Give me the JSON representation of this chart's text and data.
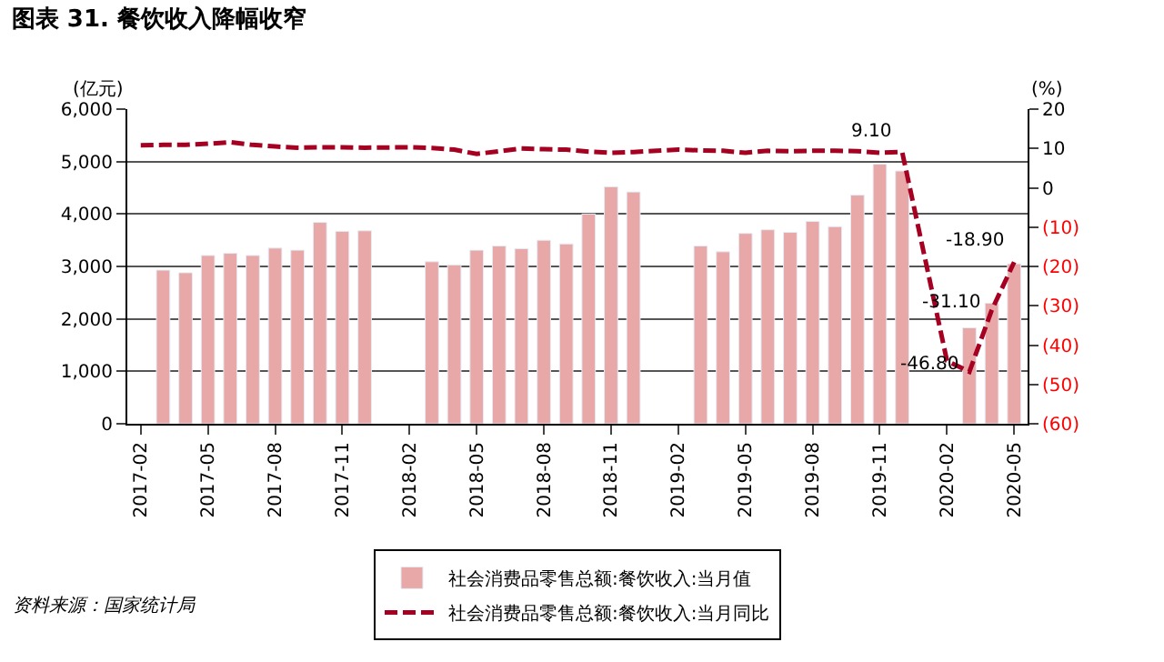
{
  "chart_data": {
    "type": "bar",
    "title": "图表 31. 餐饮收入降幅收窄",
    "ylabel": "(亿元)",
    "y2label": "(%)",
    "categories": [
      "2017-02",
      null,
      null,
      "2017-05",
      null,
      null,
      "2017-08",
      null,
      null,
      "2017-11",
      null,
      null,
      "2018-02",
      null,
      null,
      "2018-05",
      null,
      null,
      "2018-08",
      null,
      null,
      "2018-11",
      null,
      null,
      "2019-02",
      null,
      null,
      "2019-05",
      null,
      null,
      "2019-08",
      null,
      null,
      "2019-11",
      null,
      null,
      "2020-02",
      null,
      null,
      "2020-05"
    ],
    "series": [
      {
        "name": "社会消费品零售总额:餐饮收入:当月值",
        "color": "#e8a8a8",
        "values": [
          null,
          2930,
          2880,
          3210,
          3250,
          3210,
          3350,
          3310,
          3840,
          3670,
          3680,
          null,
          null,
          3090,
          3030,
          3310,
          3390,
          3340,
          3500,
          3430,
          4000,
          4520,
          4420,
          null,
          null,
          3390,
          3280,
          3630,
          3700,
          3650,
          3860,
          3760,
          4360,
          4950,
          4820,
          null,
          null,
          1830,
          2300,
          3050
        ]
      },
      {
        "name": "社会消费品零售总额:餐饮收入:当月同比",
        "type": "line",
        "axis": "y2",
        "color": "#a50021",
        "line_style": "dashed",
        "marker": "none",
        "values": [
          10.8,
          10.9,
          10.9,
          11.2,
          11.6,
          10.9,
          10.5,
          10.2,
          10.3,
          10.3,
          10.2,
          null,
          10.3,
          10.1,
          9.7,
          8.6,
          9.3,
          10.0,
          9.8,
          9.7,
          9.2,
          8.9,
          9.1,
          null,
          9.7,
          9.5,
          9.4,
          8.9,
          9.4,
          9.3,
          9.4,
          9.4,
          9.3,
          8.9,
          9.1,
          null,
          -44,
          -46.8,
          -31.1,
          -18.9
        ],
        "value_labels": [
          null,
          null,
          null,
          null,
          null,
          null,
          null,
          null,
          null,
          null,
          null,
          null,
          null,
          null,
          null,
          null,
          null,
          null,
          null,
          null,
          null,
          null,
          null,
          null,
          null,
          null,
          null,
          null,
          null,
          null,
          null,
          null,
          null,
          null,
          "9.10",
          null,
          null,
          "-46.80",
          "-31.10",
          "-18.90"
        ]
      }
    ],
    "ylim": [
      0,
      6000
    ],
    "yticks": [
      {
        "value": 0,
        "label": "0"
      },
      {
        "value": 1000,
        "label": "1,000"
      },
      {
        "value": 2000,
        "label": "2,000"
      },
      {
        "value": 3000,
        "label": "3,000"
      },
      {
        "value": 4000,
        "label": "4,000"
      },
      {
        "value": 5000,
        "label": "5,000"
      },
      {
        "value": 6000,
        "label": "6,000"
      }
    ],
    "y2lim": [
      -60,
      20
    ],
    "y2ticks": [
      {
        "value": -60,
        "label": "(60)"
      },
      {
        "value": -50,
        "label": "(50)"
      },
      {
        "value": -40,
        "label": "(40)"
      },
      {
        "value": -30,
        "label": "(30)"
      },
      {
        "value": -20,
        "label": "(20)"
      },
      {
        "value": -10,
        "label": "(10)"
      },
      0,
      10,
      20
    ],
    "grid": "y",
    "legend": "bottom",
    "annotations": [
      "资料来源：国家统计局"
    ]
  }
}
